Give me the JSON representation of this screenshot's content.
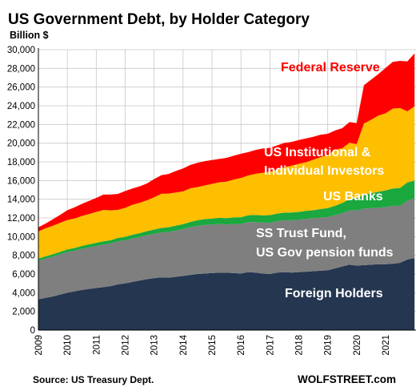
{
  "chart_data": {
    "type": "area",
    "title": "US Government Debt, by Holder Category",
    "ylabel": "Billion $",
    "ylim": [
      0,
      30000
    ],
    "yticks": [
      "0",
      "2,000",
      "4,000",
      "6,000",
      "8,000",
      "10,000",
      "12,000",
      "14,000",
      "16,000",
      "18,000",
      "20,000",
      "22,000",
      "24,000",
      "26,000",
      "28,000",
      "30,000"
    ],
    "xlim": [
      2009,
      2022.05
    ],
    "xticks": [
      "2009",
      "2010",
      "2011",
      "2012",
      "2013",
      "2014",
      "2015",
      "2016",
      "2017",
      "2018",
      "2019",
      "2020",
      "2021"
    ],
    "grid": true,
    "x": [
      2009.0,
      2009.25,
      2009.5,
      2009.75,
      2010.0,
      2010.25,
      2010.5,
      2010.75,
      2011.0,
      2011.25,
      2011.5,
      2011.75,
      2012.0,
      2012.25,
      2012.5,
      2012.75,
      2013.0,
      2013.25,
      2013.5,
      2013.75,
      2014.0,
      2014.25,
      2014.5,
      2014.75,
      2015.0,
      2015.25,
      2015.5,
      2015.75,
      2016.0,
      2016.25,
      2016.5,
      2016.75,
      2017.0,
      2017.25,
      2017.5,
      2017.75,
      2018.0,
      2018.25,
      2018.5,
      2018.75,
      2019.0,
      2019.25,
      2019.5,
      2019.75,
      2020.0,
      2020.25,
      2020.5,
      2020.75,
      2021.0,
      2021.25,
      2021.5,
      2021.75,
      2022.0
    ],
    "series": [
      {
        "name": "Foreign Holders",
        "color": "#243650",
        "values": [
          3300,
          3450,
          3600,
          3800,
          4000,
          4150,
          4300,
          4400,
          4500,
          4600,
          4700,
          4900,
          5000,
          5150,
          5300,
          5450,
          5550,
          5650,
          5600,
          5700,
          5800,
          5900,
          6000,
          6050,
          6100,
          6150,
          6150,
          6100,
          6050,
          6200,
          6150,
          6050,
          6000,
          6150,
          6200,
          6150,
          6200,
          6250,
          6300,
          6350,
          6400,
          6600,
          6800,
          7000,
          6900,
          6950,
          7000,
          7050,
          7050,
          7100,
          7200,
          7550,
          7700
        ]
      },
      {
        "name": "SS Trust Fund, US Gov pension funds",
        "color": "#7f7f7f",
        "values": [
          4100,
          4200,
          4250,
          4300,
          4350,
          4350,
          4400,
          4450,
          4500,
          4550,
          4550,
          4600,
          4600,
          4650,
          4650,
          4700,
          4750,
          4800,
          4900,
          4950,
          5000,
          5100,
          5150,
          5200,
          5200,
          5200,
          5150,
          5250,
          5300,
          5350,
          5400,
          5450,
          5500,
          5500,
          5550,
          5600,
          5600,
          5650,
          5650,
          5700,
          5700,
          5700,
          5700,
          5800,
          5900,
          6050,
          6050,
          6050,
          6100,
          6200,
          6100,
          6300,
          6400
        ]
      },
      {
        "name": "US Banks",
        "color": "#1aa83f",
        "values": [
          250,
          250,
          260,
          270,
          280,
          290,
          300,
          320,
          340,
          350,
          360,
          370,
          380,
          400,
          420,
          440,
          460,
          480,
          500,
          520,
          540,
          570,
          600,
          620,
          640,
          660,
          680,
          700,
          720,
          740,
          760,
          780,
          800,
          810,
          820,
          830,
          840,
          860,
          880,
          900,
          950,
          1000,
          1100,
          1200,
          1300,
          1500,
          1600,
          1700,
          1800,
          1850,
          1900,
          1950,
          1900
        ]
      },
      {
        "name": "US Institutional & Individual Investors",
        "color": "#fdbf00",
        "values": [
          2900,
          3000,
          3050,
          3100,
          3150,
          3150,
          3200,
          3250,
          3300,
          3350,
          3200,
          3000,
          3100,
          3200,
          3250,
          3300,
          3450,
          3650,
          3600,
          3550,
          3500,
          3600,
          3550,
          3600,
          3700,
          3800,
          3900,
          4050,
          4200,
          4250,
          4400,
          4550,
          4650,
          4700,
          4850,
          5000,
          5150,
          5200,
          5400,
          5550,
          5650,
          6000,
          5850,
          6050,
          5800,
          7600,
          7850,
          8150,
          8250,
          8550,
          8550,
          7600,
          7950
        ]
      },
      {
        "name": "Federal Reserve",
        "color": "#ff0000",
        "values": [
          450,
          500,
          700,
          850,
          1050,
          1200,
          1300,
          1400,
          1500,
          1650,
          1700,
          1700,
          1800,
          1750,
          1750,
          1800,
          1950,
          2000,
          2100,
          2300,
          2450,
          2500,
          2600,
          2600,
          2550,
          2500,
          2550,
          2550,
          2600,
          2500,
          2550,
          2600,
          2550,
          2600,
          2600,
          2550,
          2550,
          2550,
          2450,
          2400,
          2300,
          2050,
          2150,
          2200,
          2250,
          4100,
          4300,
          4450,
          4850,
          5000,
          5050,
          5350,
          5650
        ]
      }
    ]
  },
  "source": "Source: US Treasury Dept.",
  "brand": "WOLFSTREET.com"
}
